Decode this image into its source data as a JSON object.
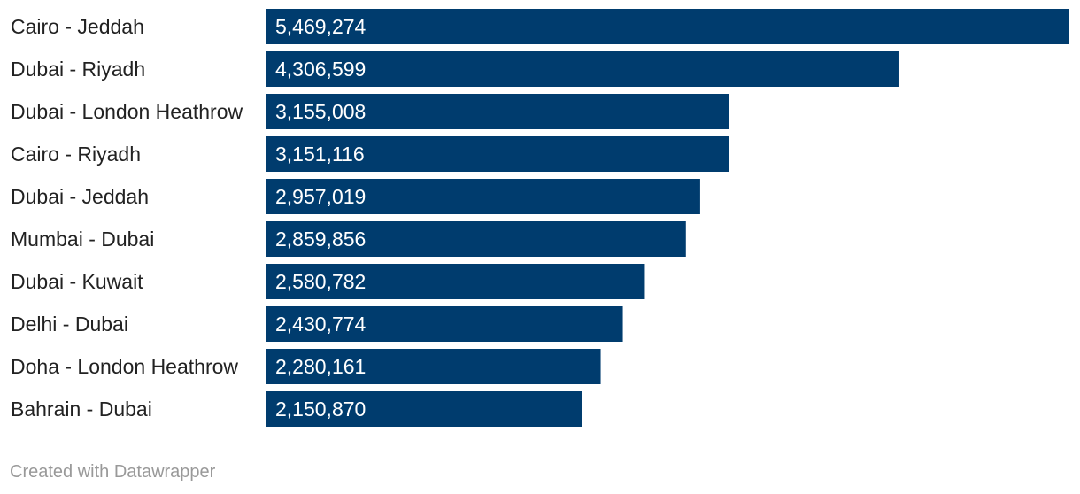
{
  "chart_data": {
    "type": "bar",
    "orientation": "horizontal",
    "categories": [
      "Cairo - Jeddah",
      "Dubai - Riyadh",
      "Dubai - London Heathrow",
      "Cairo - Riyadh",
      "Dubai - Jeddah",
      "Mumbai - Dubai",
      "Dubai - Kuwait",
      "Delhi - Dubai",
      "Doha - London Heathrow",
      "Bahrain - Dubai"
    ],
    "values": [
      5469274,
      4306599,
      3155008,
      3151116,
      2957019,
      2859856,
      2580782,
      2430774,
      2280161,
      2150870
    ],
    "value_labels": [
      "5,469,274",
      "4,306,599",
      "3,155,008",
      "3,151,116",
      "2,957,019",
      "2,859,856",
      "2,580,782",
      "2,430,774",
      "2,280,161",
      "2,150,870"
    ],
    "xlim": [
      0,
      5469274
    ],
    "grid": false,
    "legend": "none",
    "bar_color": "#003c6e",
    "value_label_position": "inside-left"
  },
  "footer": {
    "credit": "Created with Datawrapper"
  }
}
